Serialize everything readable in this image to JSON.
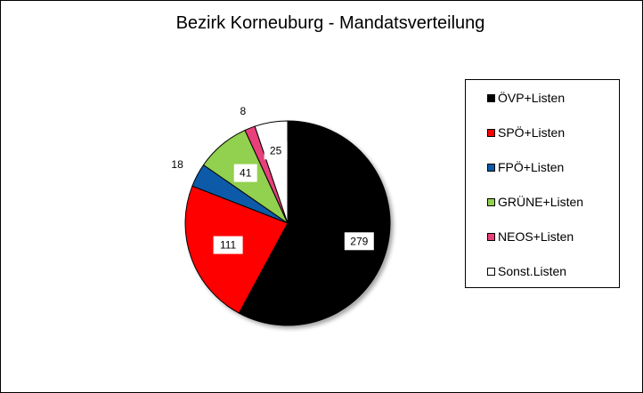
{
  "chart_data": {
    "type": "pie",
    "title": "Bezirk Korneuburg  - Mandatsverteilung",
    "legend_position": "right",
    "slices": [
      {
        "label": "ÖVP+Listen",
        "value": 279,
        "color": "#000000"
      },
      {
        "label": "SPÖ+Listen",
        "value": 111,
        "color": "#ff0000"
      },
      {
        "label": "FPÖ+Listen",
        "value": 18,
        "color": "#0a5aa8"
      },
      {
        "label": "GRÜNE+Listen",
        "value": 41,
        "color": "#92d050"
      },
      {
        "label": "NEOS+Listen",
        "value": 8,
        "color": "#e8407a"
      },
      {
        "label": "Sonst.Listen",
        "value": 25,
        "color": "#ffffff"
      }
    ]
  }
}
